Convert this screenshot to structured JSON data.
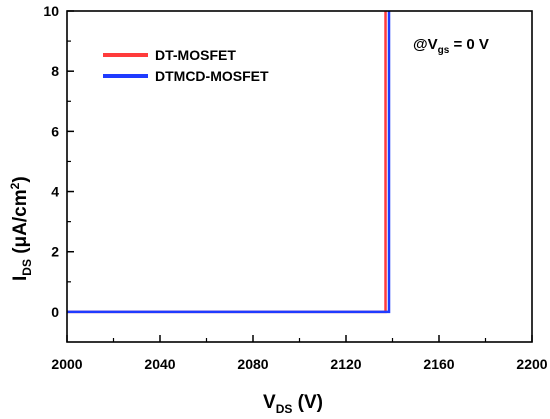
{
  "chart_data": {
    "type": "line",
    "xlabel": {
      "main": "V",
      "sub": "DS",
      "unit": " (V)"
    },
    "ylabel": {
      "main": "I",
      "sub": "DS",
      "unit": " (μA/cm",
      "sup": "2",
      "close": ")"
    },
    "annotation": {
      "prefix": "@V",
      "sub": "gs",
      "suffix": " = 0 V"
    },
    "xlim": [
      2000,
      2200
    ],
    "ylim": [
      -1,
      10
    ],
    "xticks": [
      2000,
      2040,
      2080,
      2120,
      2160,
      2200
    ],
    "yticks": [
      0,
      2,
      4,
      6,
      8,
      10
    ],
    "legend_position": "top-left",
    "series": [
      {
        "name": "DT-MOSFET",
        "color": "#ff3b3b",
        "x": [
          2000,
          2137,
          2137
        ],
        "y": [
          0,
          0,
          10
        ]
      },
      {
        "name": "DTMCD-MOSFET",
        "color": "#1f3bff",
        "x": [
          2000,
          2138.5,
          2138.5
        ],
        "y": [
          0,
          0,
          10
        ]
      }
    ]
  }
}
